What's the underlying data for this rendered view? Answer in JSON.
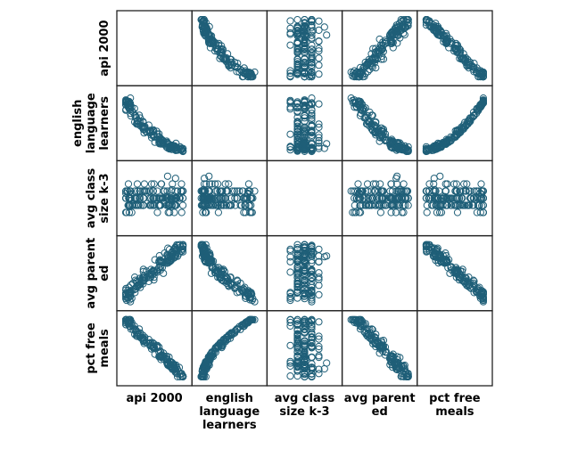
{
  "chart_data": {
    "type": "scatter",
    "subtype": "scatterplot-matrix",
    "variables": [
      "api 2000",
      "english language learners",
      "avg class size k-3",
      "avg parent ed",
      "pct free meals"
    ],
    "row_labels": [
      [
        "api 2000"
      ],
      [
        "english",
        "language",
        "learners"
      ],
      [
        "avg class",
        "size k-3"
      ],
      [
        "avg parent",
        "ed"
      ],
      [
        "pct free",
        "meals"
      ]
    ],
    "column_labels": [
      [
        "api 2000"
      ],
      [
        "english",
        "language",
        "learners"
      ],
      [
        "avg class",
        "size k-3"
      ],
      [
        "avg parent",
        "ed"
      ],
      [
        "pct free",
        "meals"
      ]
    ],
    "diagonal": "empty",
    "marker": "open-circle",
    "marker_color": "#1f5f78",
    "grid": false,
    "tick_labels": "none"
  }
}
